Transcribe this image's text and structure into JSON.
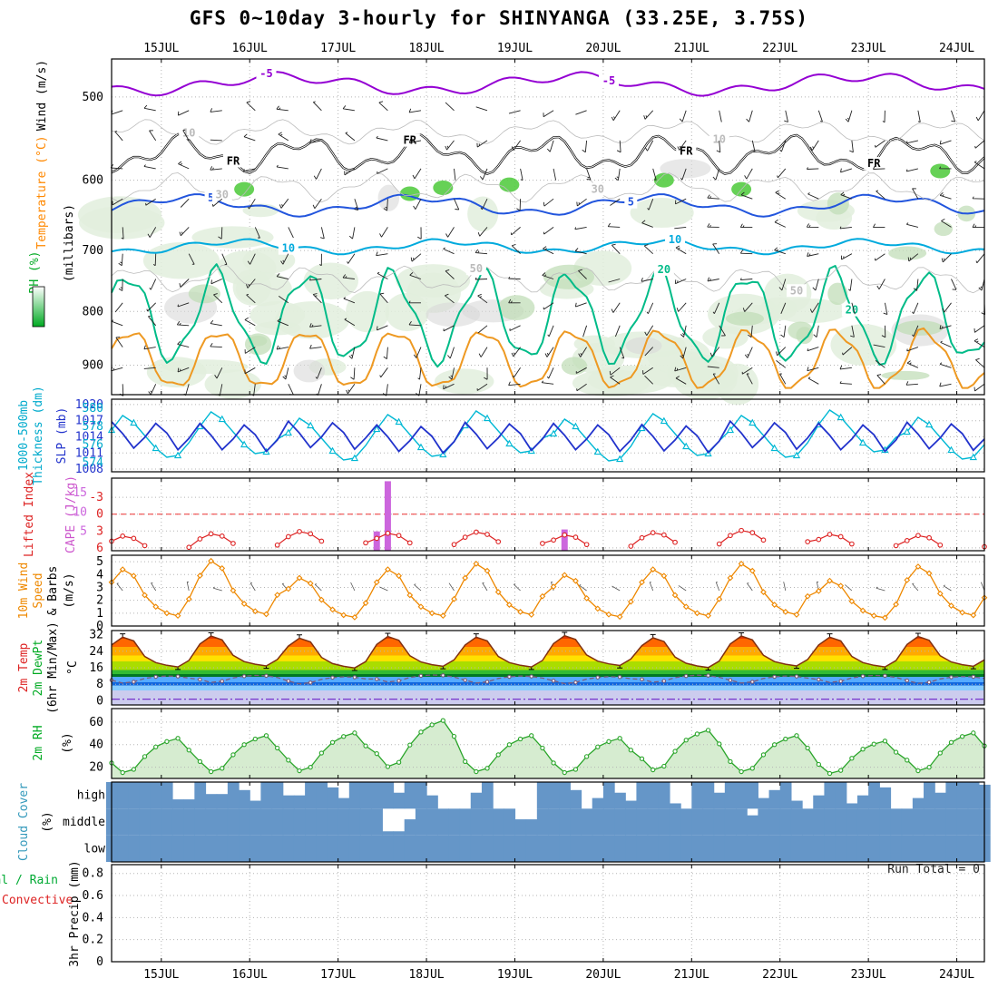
{
  "title": "GFS 0~10day 3-hourly for SHINYANGA (33.25E, 3.75S)",
  "left_labels": {
    "wind_units": {
      "text": "Wind (m/s)",
      "color": "#000000"
    },
    "temp_label": {
      "text": "Temperature (°C)",
      "color": "#ff8800"
    },
    "rh_label": {
      "text": "RH (%)",
      "color": "#00aa22"
    },
    "millibars": {
      "text": "(millibars)",
      "color": "#000000"
    },
    "thickness1": {
      "text": "1000-500mb",
      "color": "#00aacc"
    },
    "thickness2": {
      "text": "Thickness (dm)",
      "color": "#00aacc"
    },
    "slp": {
      "text": "SLP (mb)",
      "color": "#2233cc"
    },
    "li": {
      "text": "Lifted Index",
      "color": "#dd2222"
    },
    "cape": {
      "text": "CAPE (J/kg)",
      "color": "#cc55cc"
    },
    "wind10a": {
      "text": "10m Wind",
      "color": "#ee8800"
    },
    "wind10b": {
      "text": "Speed",
      "color": "#ee8800"
    },
    "barbs_lbl": {
      "text": "& Barbs",
      "color": "#000000"
    },
    "ms": {
      "text": "(m/s)",
      "color": "#000000"
    },
    "t2": {
      "text": "2m Temp",
      "color": "#dd2222"
    },
    "td2": {
      "text": "2m DewPt",
      "color": "#00aa22"
    },
    "minmax": {
      "text": "(6hr Min/Max)",
      "color": "#000000"
    },
    "degc": {
      "text": "°C",
      "color": "#000000"
    },
    "rh2": {
      "text": "2m RH",
      "color": "#00aa22"
    },
    "pct1": {
      "text": "(%)",
      "color": "#000000"
    },
    "cloud": {
      "text": "Cloud Cover",
      "color": "#3399bb"
    },
    "pct2": {
      "text": "(%)",
      "color": "#000000"
    },
    "rain": {
      "text": "Total / Rain",
      "color": "#00aa33"
    },
    "conv": {
      "text": "Convective",
      "color": "#dd2222"
    },
    "precip": {
      "text": "3hr Precip (mm)",
      "color": "#000000"
    }
  },
  "chart_data": {
    "type": "meteogram",
    "x_axis": {
      "labels": [
        "15JUL",
        "16JUL",
        "17JUL",
        "18JUL",
        "19JUL",
        "20JUL",
        "21JUL",
        "22JUL",
        "23JUL",
        "24JUL"
      ],
      "first_t": 4.5,
      "step_t": 8,
      "timesteps": 80,
      "hours_per_step": 3
    },
    "panels": {
      "upper_air": {
        "type": "contour+barbs",
        "pressure_ticks": [
          500,
          600,
          700,
          800,
          900
        ],
        "freezing_label": "FR",
        "contours": [
          {
            "label": "-5",
            "color": "#9400d3",
            "base": 486,
            "amp": 8,
            "period": 26,
            "phase": 4,
            "n_amp": 5,
            "n_period": 7,
            "width": 2,
            "label_ts": [
              14,
              45
            ]
          },
          {
            "label": "FR",
            "color": "#000000",
            "base": 567,
            "amp": 16,
            "period": 11,
            "phase": 2,
            "n_amp": 9,
            "n_period": 4.3,
            "width": 2.4,
            "label_ts": [
              11,
              27,
              52,
              69
            ],
            "double": true
          },
          {
            "label": "5",
            "color": "#2255dd",
            "base": 634,
            "amp": 11,
            "period": 21,
            "phase": 9,
            "n_amp": 5,
            "n_period": 6,
            "width": 2,
            "label_ts": [
              9,
              47
            ]
          },
          {
            "label": "10",
            "color": "#00aadd",
            "base": 694,
            "amp": 8,
            "period": 19,
            "phase": 3,
            "n_amp": 4,
            "n_period": 5.5,
            "width": 2,
            "label_ts": [
              16,
              51
            ]
          },
          {
            "label": "20",
            "color": "#00bb88",
            "base": 812,
            "amp": 75,
            "period": 8,
            "phase": 4.5,
            "n_amp": 16,
            "n_period": 3.1,
            "width": 2,
            "label_ts": [
              50,
              67
            ]
          },
          {
            "label": "",
            "color": "#ee9922",
            "base": 890,
            "amp": 55,
            "period": 8,
            "phase": 4.3,
            "n_amp": 10,
            "n_period": 2.7,
            "width": 2,
            "label_ts": []
          },
          {
            "label": "10",
            "color": "#bbbbbb",
            "base": 540,
            "amp": 10,
            "period": 12,
            "phase": 6,
            "n_amp": 5,
            "n_period": 4.1,
            "width": 0.8,
            "label_ts": [
              7,
              55
            ]
          },
          {
            "label": "30",
            "color": "#bbbbbb",
            "base": 610,
            "amp": 14,
            "period": 9,
            "phase": 1,
            "n_amp": 6,
            "n_period": 3.7,
            "width": 0.8,
            "label_ts": [
              10,
              44
            ]
          },
          {
            "label": "50",
            "color": "#bbbbbb",
            "base": 745,
            "amp": 16,
            "period": 8,
            "phase": 4,
            "n_amp": 7,
            "n_period": 3.3,
            "width": 0.8,
            "label_ts": [
              33,
              62
            ]
          }
        ],
        "bright_green_cells": [
          [
            12,
            612
          ],
          [
            27,
            618
          ],
          [
            30,
            610
          ],
          [
            36,
            606
          ],
          [
            50,
            600
          ],
          [
            57,
            612
          ],
          [
            75,
            588
          ]
        ],
        "shading_colors": {
          "pale": "#e2efdd",
          "mid": "#c2ddb8",
          "bright": "#55cc44",
          "gray": "#d8d8d8"
        },
        "barb_levels": [
          515,
          550,
          585,
          625,
          665,
          705,
          745,
          785,
          825,
          865,
          905,
          938
        ]
      },
      "slp_thickness": {
        "type": "line",
        "slp": {
          "name": "SLP (mb)",
          "color": "#2233cc",
          "ticks": [
            1020,
            1017,
            1014,
            1011,
            1008
          ],
          "amin": 1007.5,
          "amax": 1021,
          "daily_pattern": [
            1016.5,
            1014.3,
            1011.6,
            1013.6,
            1016.2,
            1014.4,
            1011.3,
            1013.4
          ],
          "day_offsets": [
            0.3,
            0,
            0.4,
            -0.3,
            0.2,
            0,
            -0.2,
            0.4,
            0,
            0.2
          ]
        },
        "thickness": {
          "name": "1000-500mb Thickness (dm)",
          "color": "#00b8d4",
          "ticks": [
            580,
            578,
            576,
            574
          ],
          "amin": 573,
          "amax": 581,
          "daily_pattern": [
            577.6,
            579.2,
            578.4,
            577.0,
            575.6,
            574.6,
            574.8,
            576.2
          ],
          "day_offsets": [
            0,
            0.4,
            -0.3,
            0.1,
            0.5,
            -0.4,
            0.2,
            0,
            0.6,
            -0.2
          ]
        }
      },
      "li_cape": {
        "type": "line+bar",
        "li": {
          "name": "Lifted Index",
          "color": "#dd2222",
          "ticks": [
            -3,
            0,
            3,
            6
          ],
          "daily_pattern": [
            4.6,
            3.7,
            4.1,
            5.4,
            null,
            null,
            null,
            5.7
          ],
          "day_offsets": [
            0.2,
            -0.2,
            -0.6,
            -0.3,
            -0.5,
            0,
            -0.4,
            -0.8,
            -0.1,
            0.1
          ]
        },
        "cape": {
          "name": "CAPE (J/kg)",
          "color": "#cc66dd",
          "ticks": [
            15,
            10,
            5
          ],
          "bars": [
            {
              "t": 24,
              "value": 5
            },
            {
              "t": 25,
              "value": 18
            },
            {
              "t": 41,
              "value": 5.5
            }
          ]
        },
        "zero_line_value": 0
      },
      "wind10m": {
        "type": "line+barbs",
        "ticks": [
          5,
          4,
          3,
          2,
          1,
          0
        ],
        "series": {
          "name": "10m Wind Speed",
          "color": "#ee8800",
          "daily_pattern": [
            3.4,
            4.4,
            3.9,
            2.4,
            1.5,
            1.0,
            0.8,
            2.1
          ],
          "day_scales": [
            1,
            1.15,
            0.85,
            1,
            1.1,
            0.9,
            1,
            1.1,
            0.8,
            1.05
          ]
        },
        "barb_color": "#555555"
      },
      "temp2m": {
        "type": "line+bandfill",
        "ticks": [
          32,
          24,
          16,
          8,
          0
        ],
        "temp": {
          "name": "2m Temp",
          "color": "#803010",
          "daily_pattern": [
            27,
            30.8,
            29,
            21.5,
            18.5,
            17.2,
            16.4,
            19.5
          ],
          "day_offsets": [
            0,
            0.5,
            -0.5,
            0.3,
            0,
            0.7,
            -0.3,
            0.5,
            0,
            0.3
          ]
        },
        "dewpt": {
          "name": "2m DewPt",
          "color": "#7a5a7a",
          "daily_pattern": [
            10,
            8.6,
            9.2,
            10.8,
            11.6,
            12.0,
            11.8,
            11.0
          ],
          "day_offsets": [
            0,
            0.3,
            -0.4,
            0.5,
            0,
            -0.3,
            0.4,
            0,
            0.3,
            -0.2
          ]
        },
        "bands": [
          [
            34,
            30,
            "#e63300"
          ],
          [
            30,
            26,
            "#ff6600"
          ],
          [
            26,
            22,
            "#ffaa00"
          ],
          [
            22,
            19,
            "#ffe100"
          ],
          [
            19,
            15,
            "#aadd00"
          ],
          [
            15,
            13,
            "#33bb33"
          ],
          [
            13,
            11.5,
            "#007722"
          ],
          [
            11.5,
            9,
            "#55aaff"
          ],
          [
            9,
            7.5,
            "#1166dd"
          ],
          [
            7.5,
            5,
            "#88ccff"
          ],
          [
            5,
            -2,
            "#ccccee"
          ]
        ],
        "zero_line": {
          "value": 0.8,
          "color": "#7733cc"
        }
      },
      "rh2m": {
        "type": "line+area",
        "ticks": [
          60,
          40,
          20
        ],
        "series": {
          "name": "2m RH",
          "color": "#2aa52a",
          "fill": "#d6ecd0",
          "daily_pattern": [
            25,
            16,
            19,
            31,
            40,
            45,
            48,
            37
          ],
          "day_scales": [
            0.95,
            1,
            1.05,
            1.28,
            1,
            0.95,
            1.1,
            1,
            0.9,
            1.05
          ]
        }
      },
      "cloud": {
        "type": "coverage",
        "fill": "#6596c8",
        "rows": [
          {
            "label": "high",
            "values": [
              1,
              1,
              1,
              1,
              1,
              1,
              0.35,
              0.35,
              1,
              0.55,
              0.55,
              1,
              0.7,
              0.3,
              1,
              1,
              0.5,
              0.5,
              1,
              1,
              0.8,
              0.4,
              1,
              1,
              1,
              1,
              0.6,
              1,
              1,
              0.5,
              0,
              0,
              0,
              0.6,
              1,
              0,
              0,
              0,
              0,
              1,
              1,
              1,
              0.7,
              0,
              0.4,
              1,
              0.6,
              0.3,
              1,
              1,
              1,
              0.2,
              0,
              1,
              1,
              0.6,
              1,
              1,
              1,
              0.4,
              0.7,
              1,
              0.3,
              0,
              0.5,
              1,
              1,
              0.2,
              0.5,
              1,
              0.8,
              0,
              0,
              0.4,
              1,
              0.6,
              1,
              1,
              1,
              0.9
            ]
          },
          {
            "label": "middle",
            "default": 1,
            "overrides": {
              "25": 0.15,
              "26": 0.15,
              "27": 0.6,
              "37": 0.6,
              "38": 0.6,
              "58": 0.75
            }
          },
          {
            "label": "low",
            "default": 1
          }
        ]
      },
      "precip": {
        "type": "bar",
        "tick_labels": [
          "0.8",
          "0.6",
          "0.4",
          "0.2",
          "0"
        ],
        "tick_values": [
          0.8,
          0.6,
          0.4,
          0.2,
          0
        ],
        "run_total_label": "Run Total = 0",
        "values_all_zero": true
      }
    }
  }
}
